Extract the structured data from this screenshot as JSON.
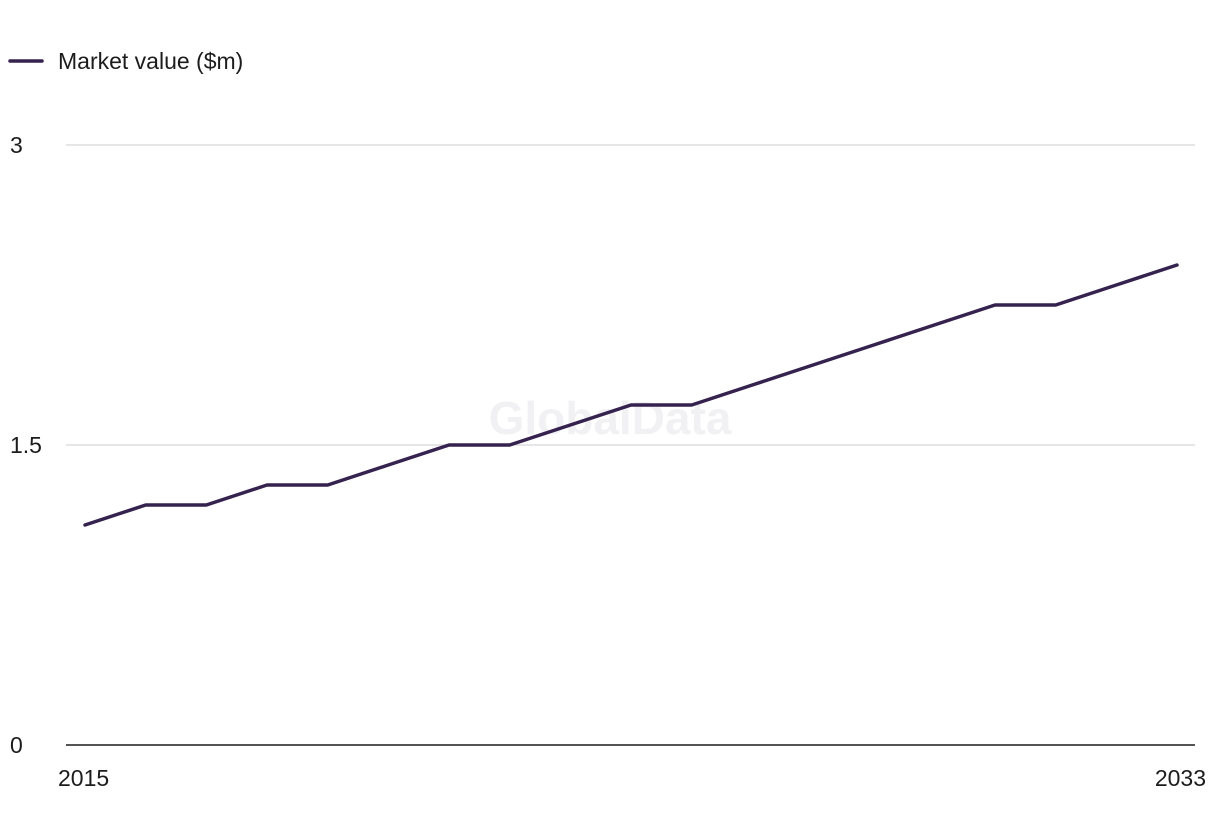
{
  "watermark": "GlobalData",
  "chart_data": {
    "type": "line",
    "x": [
      2015,
      2016,
      2017,
      2018,
      2019,
      2020,
      2021,
      2022,
      2023,
      2024,
      2025,
      2026,
      2027,
      2028,
      2029,
      2030,
      2031,
      2032,
      2033
    ],
    "series": [
      {
        "name": "Market value ($m)",
        "values": [
          1.1,
          1.2,
          1.2,
          1.3,
          1.3,
          1.4,
          1.5,
          1.5,
          1.6,
          1.7,
          1.7,
          1.8,
          1.9,
          2.0,
          2.1,
          2.2,
          2.2,
          2.3,
          2.4
        ]
      }
    ],
    "ylim": [
      0,
      3
    ],
    "yticks": [
      0,
      1.5,
      3
    ],
    "yticklabels": [
      "0",
      "1.5",
      "3"
    ],
    "xticklabels": [
      "2015",
      "2033"
    ],
    "grid": true,
    "legend_position": "top-left",
    "colors": {
      "line": "#35224f",
      "grid": "#d6d6d9",
      "axis": "#1c1c1c",
      "text": "#1c1c1c"
    }
  }
}
